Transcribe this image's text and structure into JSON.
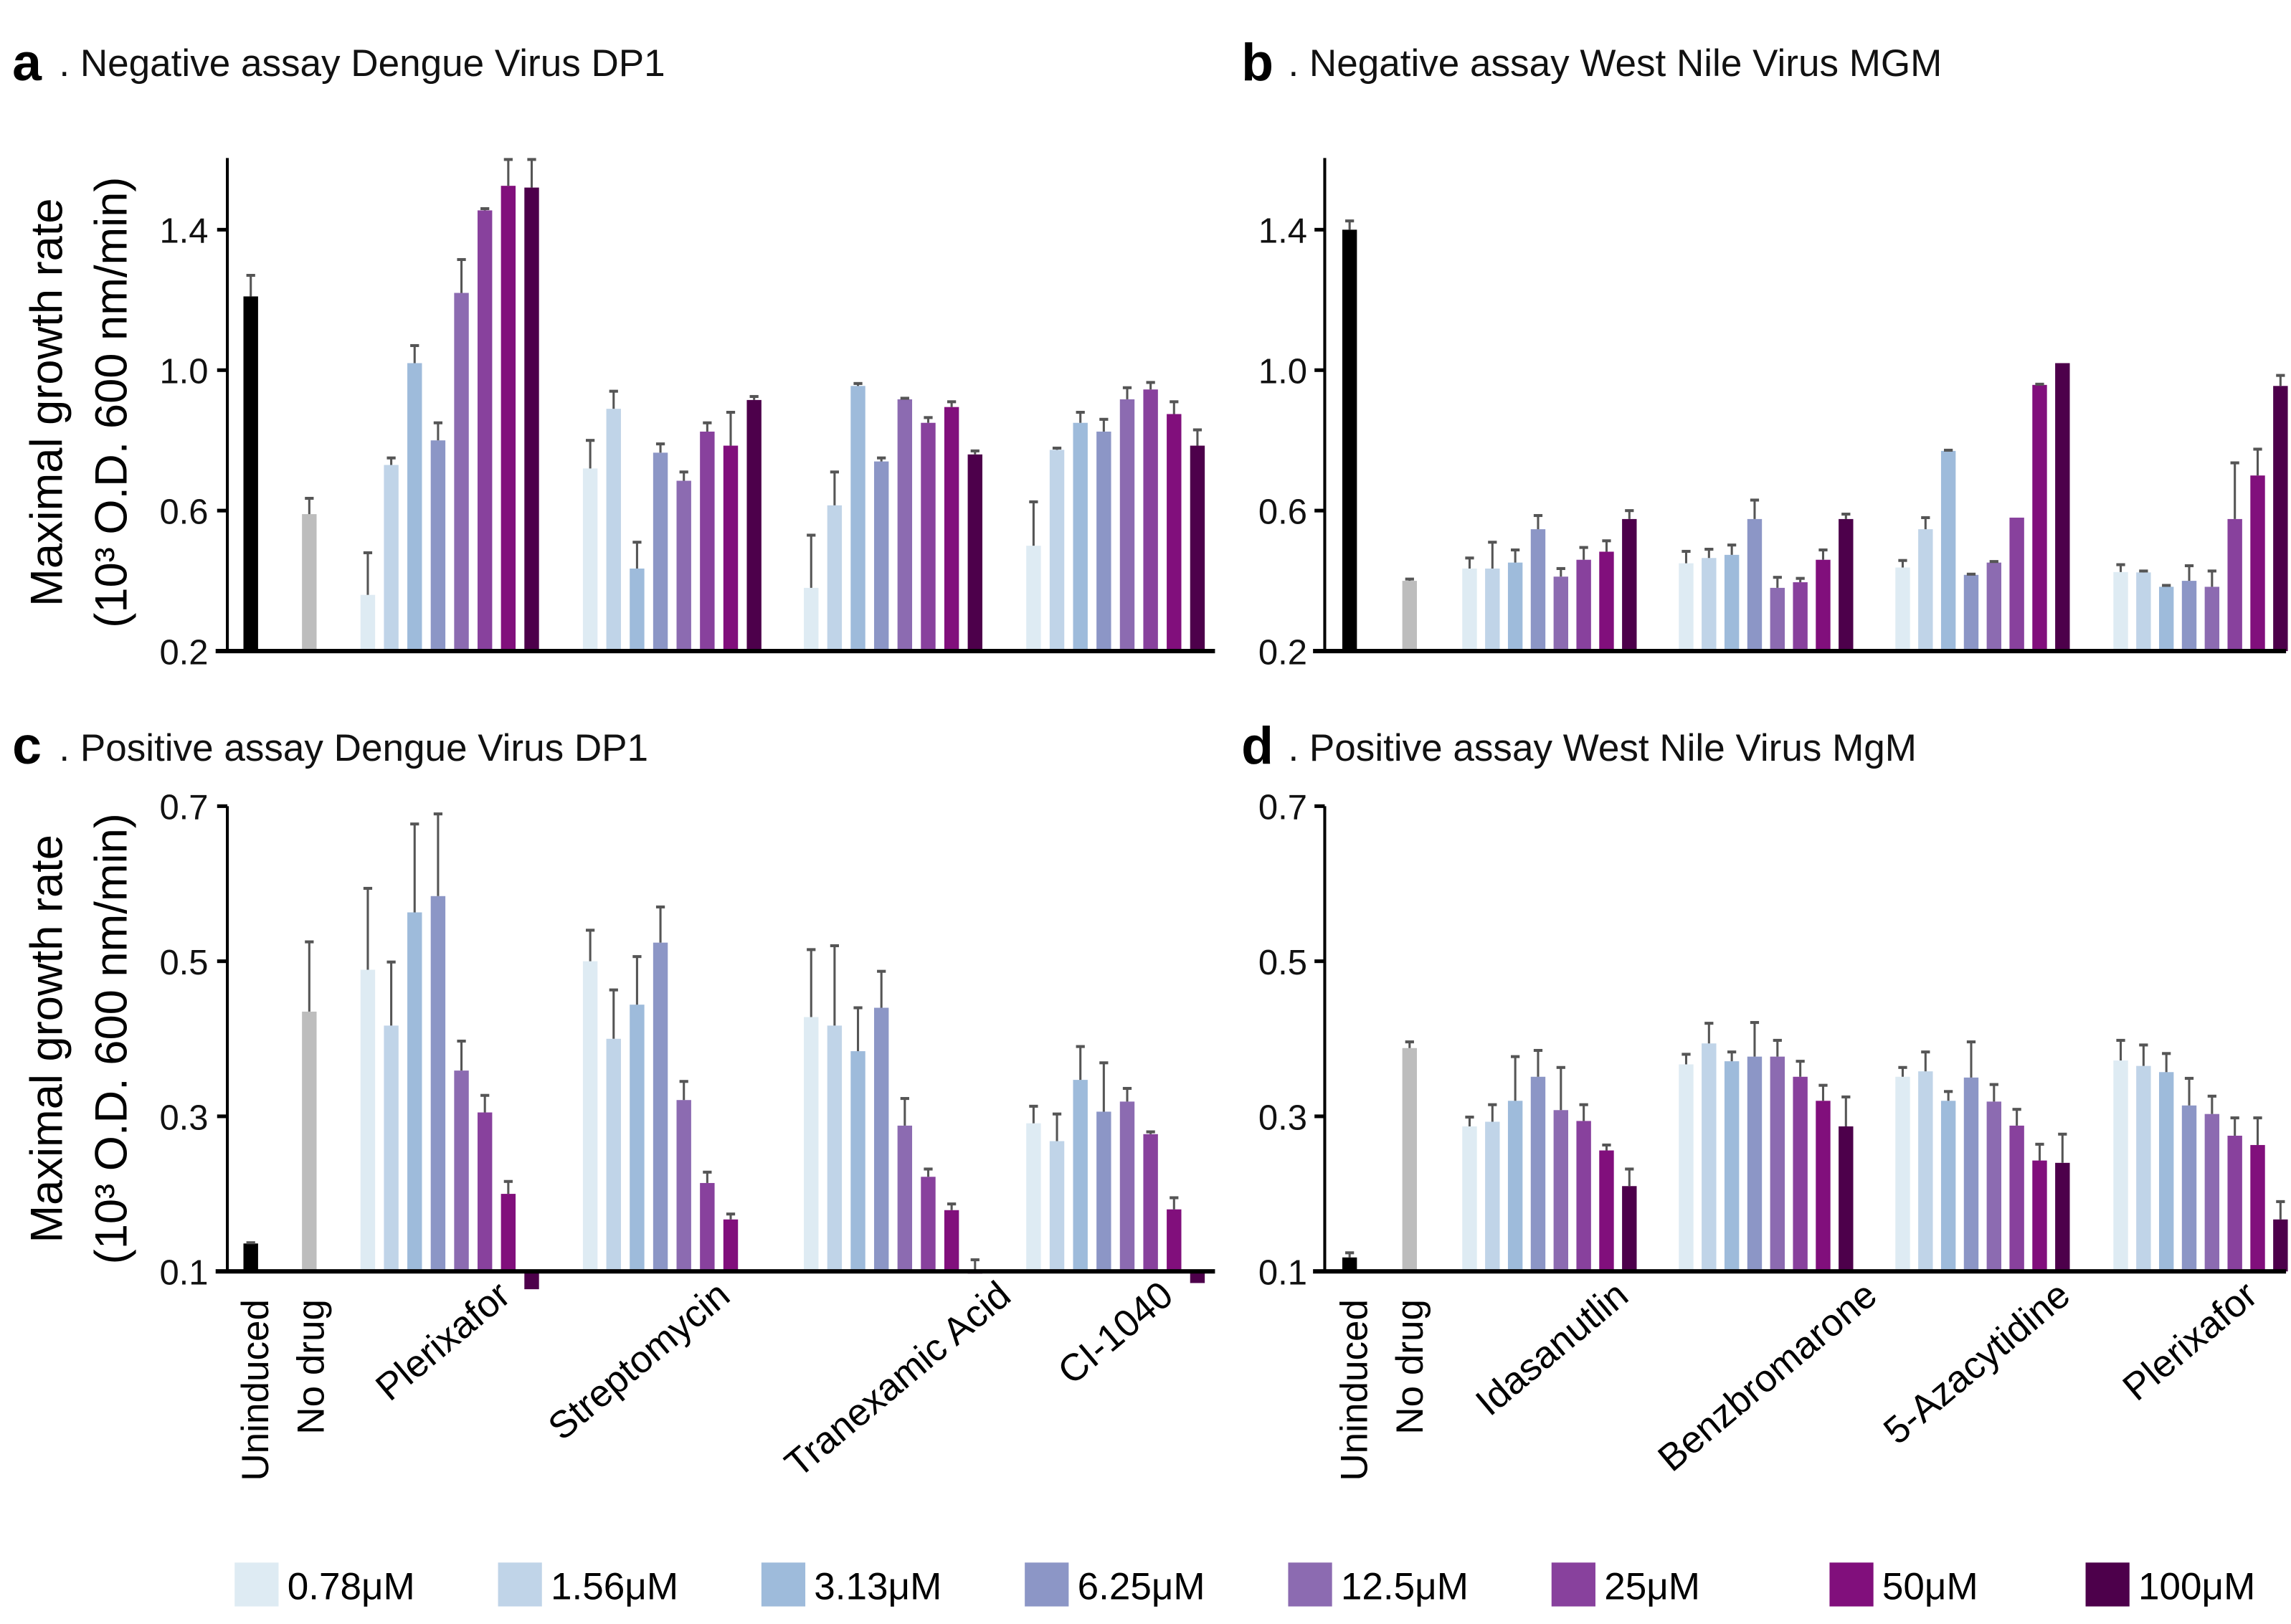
{
  "colors": {
    "uninduced": "#000000",
    "no_drug": "#bdbdbd",
    "error_bar": "#555555",
    "concentrations": [
      "#deebf3",
      "#c0d4e8",
      "#9ebbdb",
      "#8c96c6",
      "#8c6bb1",
      "#88419d",
      "#810f7c",
      "#4d004b"
    ]
  },
  "legend": [
    "0.78μM",
    "1.56μM",
    "3.13μM",
    "6.25μM",
    "12.5μM",
    "25μM",
    "50μM",
    "100μM"
  ],
  "ylabel_line1": "Maximal growth rate",
  "ylabel_line2": "(10³ O.D. 600 nm/min)",
  "chart_data": [
    {
      "type": "bar",
      "panel": "a",
      "title": ". Negative assay Dengue Virus DP1",
      "ylim": [
        0.2,
        1.6
      ],
      "yticks": [
        "1.4",
        "1.0",
        "0.6",
        "0.2"
      ],
      "ytick_values": [
        1.4,
        1.0,
        0.6,
        0.2
      ],
      "ylabel": "Maximal growth rate (10³ O.D. 600 nm/min)",
      "controls": {
        "uninduced": [
          1.21,
          1.27
        ],
        "no_drug": [
          0.59,
          0.635
        ]
      },
      "categories": [
        "Plerixafor",
        "Streptomycin",
        "Tranexamic Acid",
        "CI-1040"
      ],
      "values": [
        [
          0.36,
          0.73,
          1.02,
          0.8,
          1.22,
          1.455,
          1.525,
          1.52
        ],
        [
          0.72,
          0.89,
          0.435,
          0.765,
          0.685,
          0.825,
          0.785,
          0.915
        ],
        [
          0.38,
          0.615,
          0.955,
          0.74,
          0.917,
          0.85,
          0.895,
          0.76
        ],
        [
          0.5,
          0.773,
          0.85,
          0.825,
          0.917,
          0.945,
          0.875,
          0.785
        ]
      ],
      "error_tops": [
        [
          0.48,
          0.75,
          1.07,
          0.85,
          1.315,
          1.46,
          1.6,
          1.6
        ],
        [
          0.8,
          0.94,
          0.51,
          0.79,
          0.71,
          0.85,
          0.88,
          0.925
        ],
        [
          0.53,
          0.71,
          0.962,
          0.75,
          0.92,
          0.865,
          0.91,
          0.77
        ],
        [
          0.625,
          0.778,
          0.88,
          0.86,
          0.95,
          0.965,
          0.91,
          0.83
        ]
      ]
    },
    {
      "type": "bar",
      "panel": "b",
      "title": ". Negative assay West Nile Virus MGM",
      "ylim": [
        0.2,
        1.6
      ],
      "yticks": [
        "1.4",
        "1.0",
        "0.6",
        "0.2"
      ],
      "ytick_values": [
        1.4,
        1.0,
        0.6,
        0.2
      ],
      "controls": {
        "uninduced": [
          1.4,
          1.425
        ],
        "no_drug": [
          0.4,
          0.405
        ]
      },
      "categories": [
        "Idasanutlin",
        "Benzbromarone",
        "5-Azacytidine",
        "Plerixafor"
      ],
      "values": [
        [
          0.435,
          0.435,
          0.452,
          0.547,
          0.412,
          0.46,
          0.483,
          0.576
        ],
        [
          0.45,
          0.465,
          0.474,
          0.576,
          0.38,
          0.396,
          0.46,
          0.576
        ],
        [
          0.438,
          0.547,
          0.77,
          0.417,
          0.452,
          0.58,
          0.958,
          1.02
        ],
        [
          0.425,
          0.424,
          0.383,
          0.4,
          0.383,
          0.576,
          0.7,
          0.955
        ]
      ],
      "error_tops": [
        [
          0.465,
          0.51,
          0.488,
          0.586,
          0.435,
          0.495,
          0.514,
          0.6
        ],
        [
          0.484,
          0.49,
          0.502,
          0.63,
          0.41,
          0.407,
          0.488,
          0.59
        ],
        [
          0.458,
          0.58,
          0.772,
          0.419,
          0.455,
          0.58,
          0.96,
          1.02
        ],
        [
          0.446,
          0.428,
          0.387,
          0.443,
          0.428,
          0.736,
          0.775,
          0.985
        ]
      ]
    },
    {
      "type": "bar",
      "panel": "c",
      "title": ". Positive assay Dengue Virus DP1",
      "ylim": [
        0.1,
        0.7
      ],
      "yticks": [
        "0.7",
        "0.5",
        "0.3",
        "0.1"
      ],
      "ytick_values": [
        0.7,
        0.5,
        0.3,
        0.1
      ],
      "ylabel": "Maximal growth rate (10³ O.D. 600 nm/min)",
      "controls": {
        "uninduced": [
          0.136,
          0.137
        ],
        "no_drug": [
          0.435,
          0.525
        ]
      },
      "categories": [
        "Plerixafor",
        "Streptomycin",
        "Tranexamic Acid",
        "CI-1040"
      ],
      "x_controls": [
        "Uninduced",
        "No drug"
      ],
      "values": [
        [
          0.489,
          0.417,
          0.563,
          0.584,
          0.359,
          0.305,
          0.2,
          0.077
        ],
        [
          0.5,
          0.4,
          0.444,
          0.524,
          0.321,
          0.214,
          0.167,
          null
        ],
        [
          0.428,
          0.417,
          0.384,
          0.44,
          0.288,
          0.222,
          0.179,
          0.1
        ],
        [
          0.291,
          0.268,
          0.347,
          0.306,
          0.319,
          0.277,
          0.18,
          0.085
        ]
      ],
      "error_tops": [
        [
          0.594,
          0.499,
          0.677,
          0.69,
          0.397,
          0.327,
          0.216,
          null
        ],
        [
          0.54,
          0.463,
          0.506,
          0.57,
          0.345,
          0.228,
          0.174,
          null
        ],
        [
          0.515,
          0.52,
          0.44,
          0.487,
          0.323,
          0.232,
          0.187,
          0.115
        ],
        [
          0.313,
          0.303,
          0.39,
          0.369,
          0.336,
          0.28,
          0.195,
          null
        ]
      ]
    },
    {
      "type": "bar",
      "panel": "d",
      "title": ". Positive assay West Nile Virus MgM",
      "ylim": [
        0.1,
        0.7
      ],
      "yticks": [
        "0.7",
        "0.5",
        "0.3",
        "0.1"
      ],
      "ytick_values": [
        0.7,
        0.5,
        0.3,
        0.1
      ],
      "controls": {
        "uninduced": [
          0.118,
          0.124
        ],
        "no_drug": [
          0.388,
          0.396
        ]
      },
      "categories": [
        "Idasanutlin",
        "Benzbromarone",
        "5-Azacytidine",
        "Plerixafor"
      ],
      "x_controls": [
        "Uninduced",
        "No drug"
      ],
      "values": [
        [
          0.287,
          0.293,
          0.32,
          0.351,
          0.308,
          0.294,
          0.256,
          0.21
        ],
        [
          0.367,
          0.394,
          0.371,
          0.377,
          0.377,
          0.351,
          0.32,
          0.287
        ],
        [
          0.351,
          0.358,
          0.32,
          0.35,
          0.319,
          0.288,
          0.243,
          0.24
        ],
        [
          0.372,
          0.365,
          0.357,
          0.314,
          0.303,
          0.275,
          0.263,
          0.167
        ]
      ],
      "error_tops": [
        [
          0.299,
          0.315,
          0.377,
          0.385,
          0.363,
          0.315,
          0.263,
          0.232
        ],
        [
          0.38,
          0.42,
          0.383,
          0.421,
          0.398,
          0.371,
          0.34,
          0.325
        ],
        [
          0.363,
          0.383,
          0.332,
          0.396,
          0.341,
          0.309,
          0.264,
          0.277
        ],
        [
          0.398,
          0.392,
          0.381,
          0.349,
          0.326,
          0.298,
          0.298,
          0.19
        ]
      ]
    }
  ]
}
